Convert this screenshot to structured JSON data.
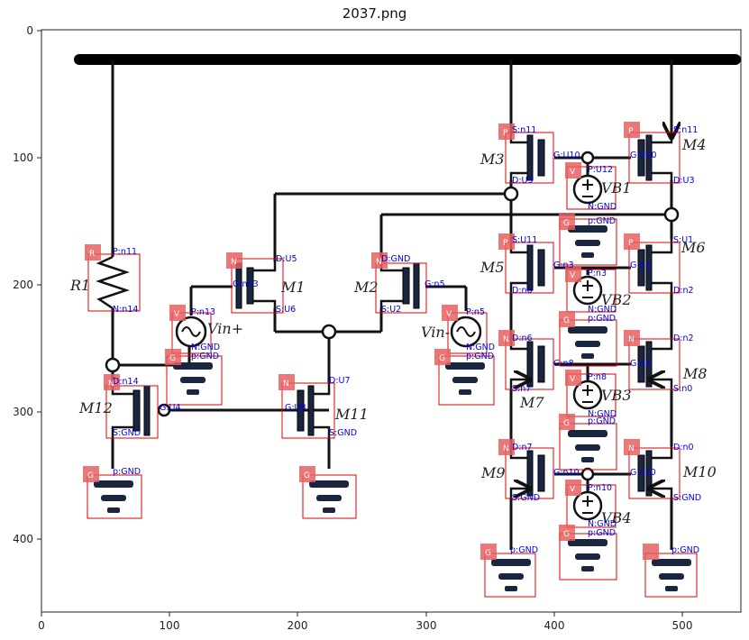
{
  "title": "2037.png",
  "axes": {
    "x_ticks": [
      "0",
      "100",
      "200",
      "300",
      "400",
      "500"
    ],
    "y_ticks": [
      "0",
      "100",
      "200",
      "300",
      "400"
    ]
  },
  "component_labels": [
    "M3",
    "M4",
    "M5",
    "M6",
    "M7",
    "M8",
    "M9",
    "M10",
    "M1",
    "M2",
    "M11",
    "M12",
    "R1",
    "Vin+",
    "Vin-",
    "VB1",
    "VB2",
    "VB3",
    "VB4"
  ],
  "tags": [
    "P",
    "P",
    "P",
    "P",
    "N",
    "N",
    "N",
    "N",
    "N",
    "N",
    "N",
    "N",
    "R",
    "V",
    "V",
    "V",
    "V",
    "V",
    "V",
    "G",
    "G",
    "G",
    "G",
    "G",
    "G",
    "G",
    "G",
    "G"
  ],
  "pin_labels": [
    "S:n11",
    "G:U10",
    "D:U9",
    "S:n11",
    "G:U10",
    "D:U3",
    "P:U12",
    "N:GND",
    "S:U11",
    "G:n3",
    "D:n6",
    "S:U1",
    "G:n3",
    "D:n2",
    "P:n3",
    "N:GND",
    "D:n6",
    "G:n8",
    "S:n7",
    "D:n2",
    "G:n8",
    "S:n0",
    "P:n8",
    "N:GND",
    "D:n7",
    "G:n10",
    "S:GND",
    "D:n0",
    "G:n10",
    "S:GND",
    "P:n10",
    "N:GND",
    "p:GND",
    "p:GND",
    "p:GND",
    "p:GND",
    "p:GND",
    "p:GND",
    "p:GND",
    "p:GND",
    "p:GND",
    "P:n11",
    "N:n14",
    "D:U5",
    "G:n13",
    "S:U6",
    "D:GND",
    "G:n5",
    "S:U2",
    "P:n13",
    "N:GND",
    "P:n5",
    "N:GND",
    "D:n14",
    "G:U4",
    "S:GND",
    "D:U7",
    "G:U8",
    "S:GND"
  ]
}
